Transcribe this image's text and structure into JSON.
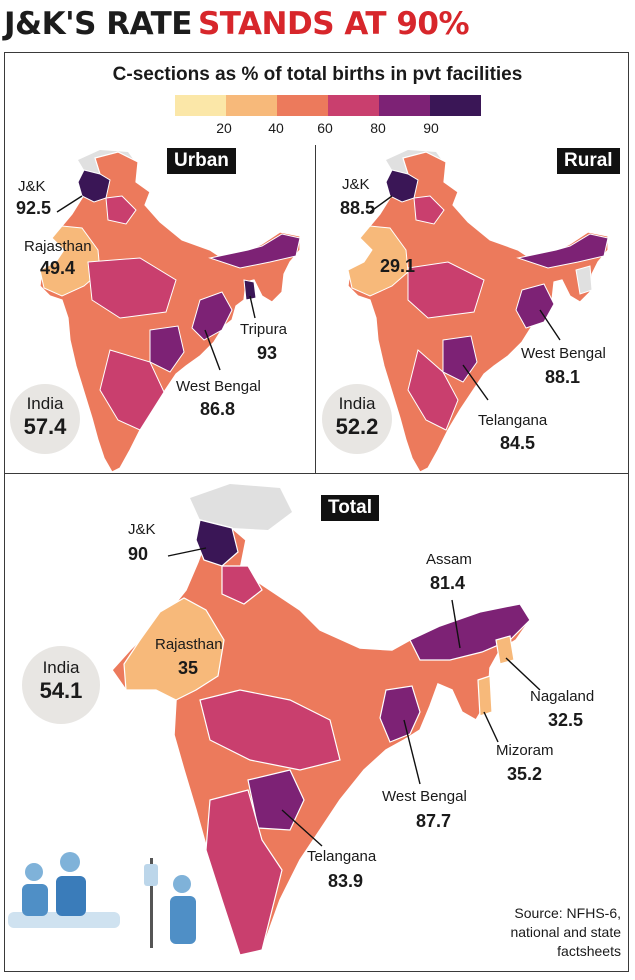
{
  "headline": {
    "part1": "J&K'S RATE",
    "part2": "STANDS AT 90%"
  },
  "subtitle": "C-sections as % of total births in pvt facilities",
  "legend": {
    "colors": [
      "#fbe7a8",
      "#f7b97a",
      "#ec7a5c",
      "#c93f6e",
      "#7d2275",
      "#3a1656"
    ],
    "ticks": [
      "20",
      "40",
      "60",
      "80",
      "90"
    ]
  },
  "urban": {
    "tag": "Urban",
    "india_label": "India",
    "india_value": "57.4",
    "labels": [
      {
        "name": "J&K",
        "value": "92.5"
      },
      {
        "name": "Rajasthan",
        "value": "49.4"
      },
      {
        "name": "Tripura",
        "value": "93"
      },
      {
        "name": "West Bengal",
        "value": "86.8"
      }
    ]
  },
  "rural": {
    "tag": "Rural",
    "india_label": "India",
    "india_value": "52.2",
    "labels": [
      {
        "name": "J&K",
        "value": "88.5"
      },
      {
        "name": "",
        "value": "29.1"
      },
      {
        "name": "West Bengal",
        "value": "88.1"
      },
      {
        "name": "Telangana",
        "value": "84.5"
      }
    ]
  },
  "total": {
    "tag": "Total",
    "india_label": "India",
    "india_value": "54.1",
    "labels": [
      {
        "name": "J&K",
        "value": "90"
      },
      {
        "name": "Rajasthan",
        "value": "35"
      },
      {
        "name": "Assam",
        "value": "81.4"
      },
      {
        "name": "Nagaland",
        "value": "32.5"
      },
      {
        "name": "Mizoram",
        "value": "35.2"
      },
      {
        "name": "West Bengal",
        "value": "87.7"
      },
      {
        "name": "Telangana",
        "value": "83.9"
      }
    ]
  },
  "source": {
    "line1": "Source: NFHS-6,",
    "line2": "national and state",
    "line3": "factsheets"
  }
}
